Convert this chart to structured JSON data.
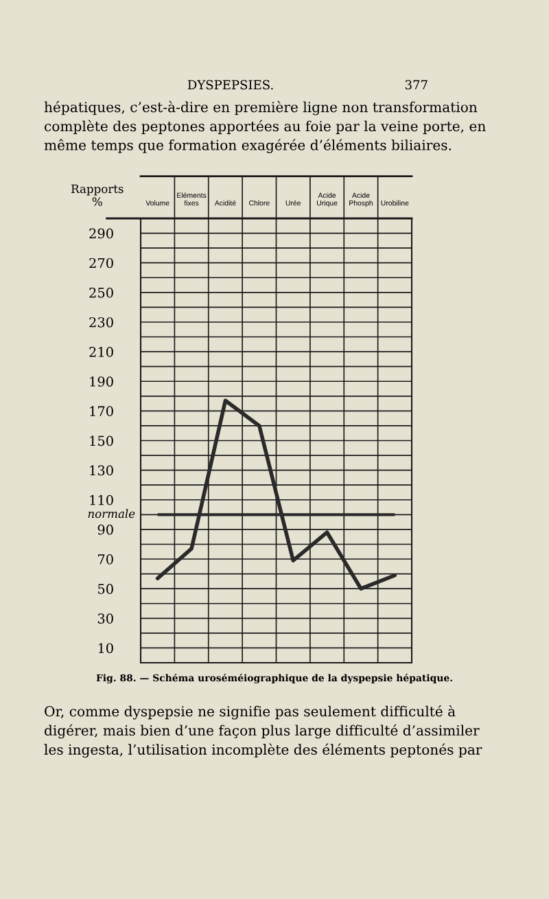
{
  "chart_data": {
    "type": "line",
    "title": "Fig. 88. — Schéma uroséméiographique de la dyspepsie hépatique.",
    "ylabel": "Rapports\n%",
    "categories": [
      "Volume",
      "Eléments\nfixes",
      "Acidité",
      "Chlore",
      "Urée",
      "Acide\nUrique",
      "Acide\nPhosph",
      "Urobiline"
    ],
    "series": [
      {
        "color": "#2a2a2a",
        "values": [
          57,
          77,
          177,
          160,
          69,
          88,
          50,
          59
        ]
      }
    ],
    "ylim": [
      0,
      300
    ],
    "yticks": [
      {
        "value": 0,
        "label": null
      },
      10,
      {
        "value": 20,
        "label": null
      },
      30,
      {
        "value": 40,
        "label": null
      },
      50,
      {
        "value": 60,
        "label": null
      },
      70,
      {
        "value": 80,
        "label": null
      },
      90,
      {
        "value": 100,
        "label": null
      },
      110,
      {
        "value": 120,
        "label": null
      },
      130,
      {
        "value": 140,
        "label": null
      },
      150,
      {
        "value": 160,
        "label": null
      },
      170,
      {
        "value": 180,
        "label": null
      },
      190,
      {
        "value": 200,
        "label": null
      },
      210,
      {
        "value": 220,
        "label": null
      },
      230,
      {
        "value": 240,
        "label": null
      },
      250,
      {
        "value": 260,
        "label": null
      },
      270,
      {
        "value": 280,
        "label": null
      },
      290,
      {
        "value": 300,
        "label": null
      }
    ],
    "grid": true,
    "ref_lines": [
      {
        "axis": "y",
        "value": 100,
        "label": "normale",
        "color": "#2a2a2a"
      }
    ],
    "annotations": [
      "DYSPEPSIES.",
      "377",
      "hépatiques, c’est-à-dire en première ligne non transformation\ncomplète des peptones apportées au foie par la veine porte, en\nmême temps que formation exagérée d’éléments biliaires.",
      "Or, comme dyspepsie ne signifie pas seulement difficulté à\ndigérer, mais bien d’une façon plus large difficulté d’assimiler\nles ingesta, l’utilisation incomplète des éléments peptonés par"
    ]
  }
}
